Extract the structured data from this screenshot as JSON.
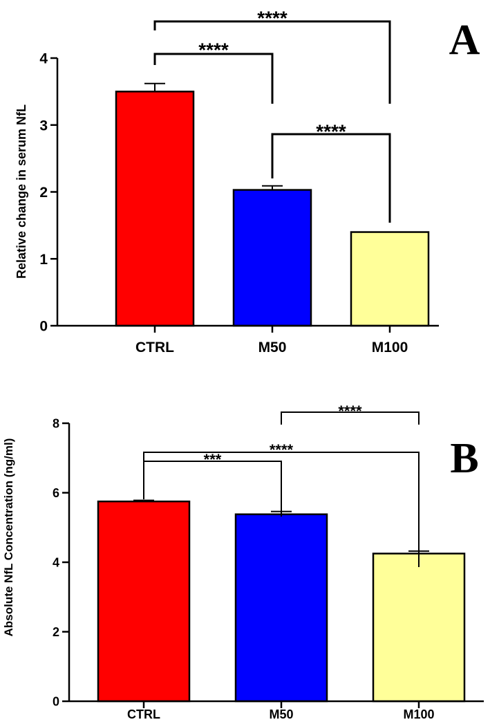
{
  "colors": {
    "CTRL": "#ff0000",
    "M50": "#0000ff",
    "M100": "#ffff99"
  },
  "chart_data": [
    {
      "panel": "A",
      "type": "bar",
      "categories": [
        "CTRL",
        "M50",
        "M100"
      ],
      "values": [
        3.5,
        2.03,
        1.4
      ],
      "errors": [
        0.12,
        0.06,
        0.0
      ],
      "ylabel": "Relative change in serum NfL",
      "xlabel": "",
      "ylim": [
        0,
        4
      ],
      "yticks": [
        0,
        1,
        2,
        3,
        4
      ],
      "yticklabels": [
        "0",
        "1",
        "2",
        "3",
        "4"
      ],
      "grid": false,
      "comparisons": [
        {
          "from": "CTRL",
          "to": "M50",
          "label": "****"
        },
        {
          "from": "CTRL",
          "to": "M100",
          "label": "****"
        },
        {
          "from": "M50",
          "to": "M100",
          "label": "****"
        }
      ]
    },
    {
      "panel": "B",
      "type": "bar",
      "categories": [
        "CTRL",
        "M50",
        "M100"
      ],
      "values": [
        5.75,
        5.38,
        4.25
      ],
      "errors": [
        0.03,
        0.08,
        0.07
      ],
      "ylabel": "Absolute NfL Concentration (ng/ml)",
      "xlabel": "",
      "ylim": [
        0,
        8
      ],
      "yticks": [
        0,
        2,
        4,
        6,
        8
      ],
      "yticklabels": [
        "0",
        "2",
        "4",
        "6",
        "8"
      ],
      "grid": false,
      "comparisons": [
        {
          "from": "CTRL",
          "to": "M50",
          "label": "***"
        },
        {
          "from": "CTRL",
          "to": "M100",
          "label": "****"
        },
        {
          "from": "M50",
          "to": "M100",
          "label": "****"
        }
      ]
    }
  ]
}
